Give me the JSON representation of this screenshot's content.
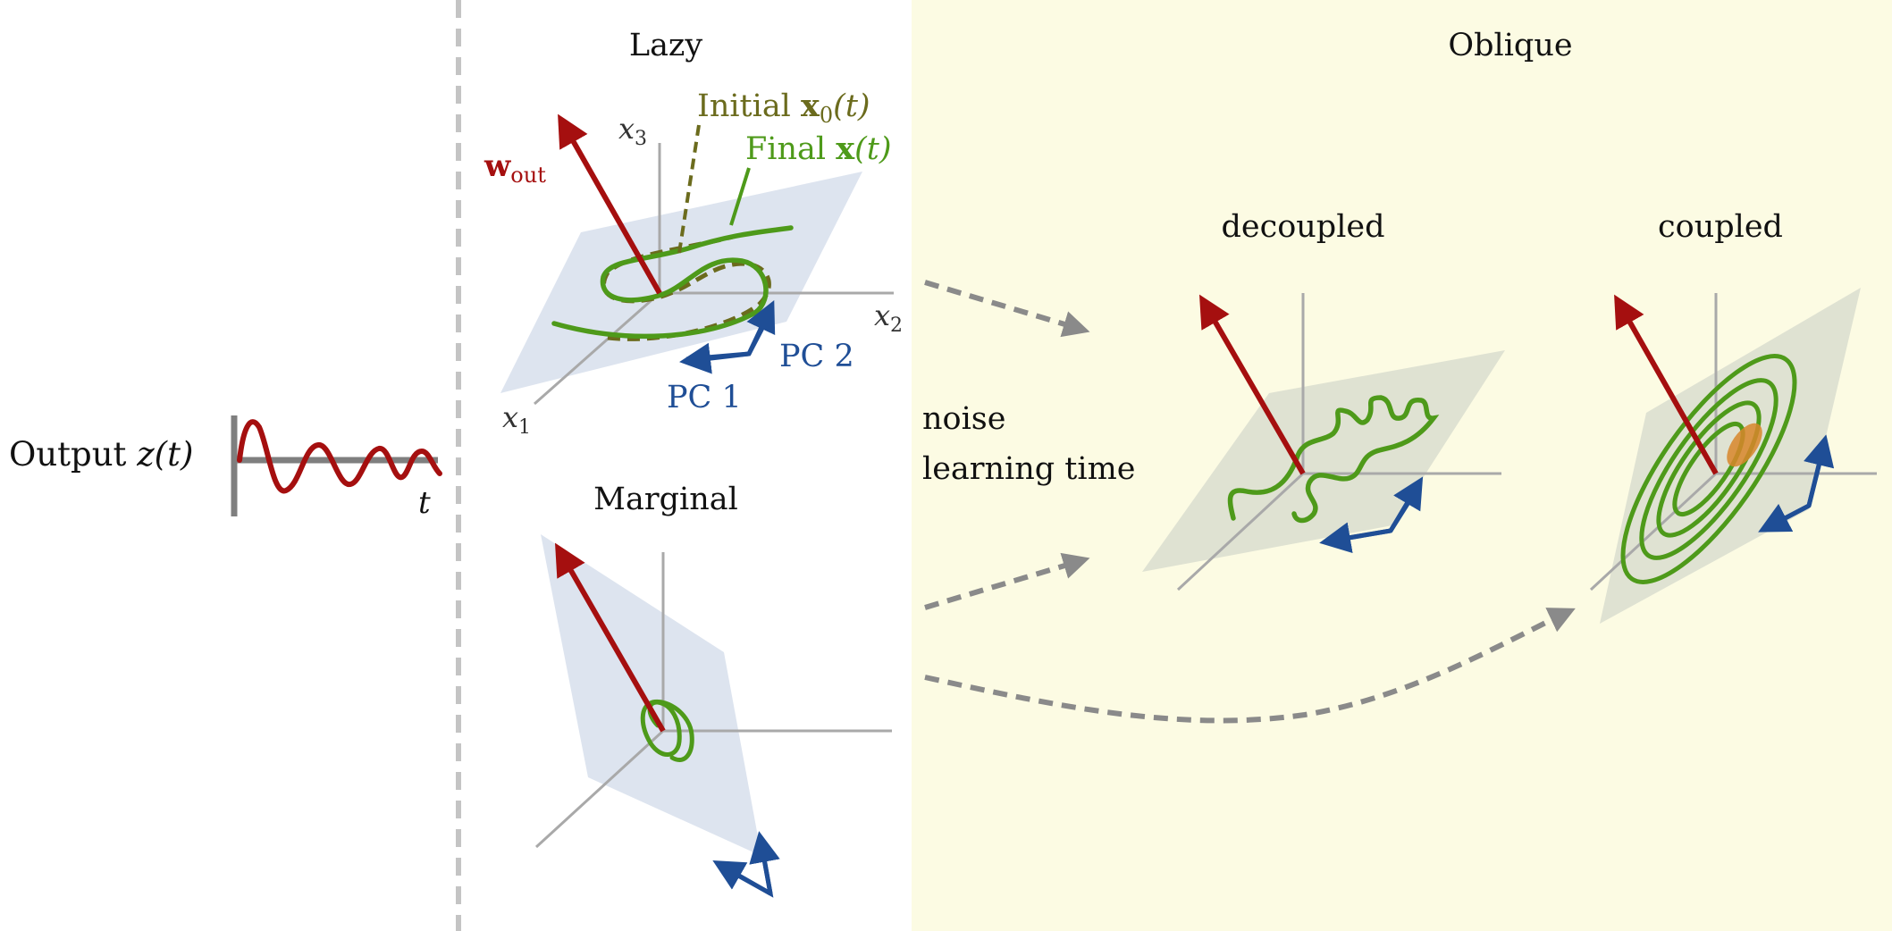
{
  "colors": {
    "output_vector": "#a50f0f",
    "initial_trajectory": "#6b6b1d",
    "final_trajectory": "#4e9a1a",
    "pc_arrows": "#1f4e96",
    "plane_lazy": "#dde4ef",
    "plane_oblique": "#dfe2d2",
    "axes": "#a9a9a9",
    "dashed_flow_arrows": "#8a8a8a",
    "oblique_background": "#fcfbe3",
    "orange_blob": "#d8862c"
  },
  "left": {
    "output_label": "Output",
    "output_var": "z(t)",
    "time_label": "t"
  },
  "lazy": {
    "title": "Lazy",
    "w_out": "w",
    "w_out_sub": "out",
    "x3": "x",
    "x3_sub": "3",
    "x2": "x",
    "x2_sub": "2",
    "x1": "x",
    "x1_sub": "1",
    "initial_label": "Initial ",
    "initial_bold": "x",
    "initial_sub": "0",
    "initial_tail": "(t)",
    "final_label": "Final ",
    "final_bold": "x",
    "final_tail": "(t)",
    "pc1": "PC 1",
    "pc2": "PC 2"
  },
  "marginal": {
    "title": "Marginal"
  },
  "middle": {
    "line1": "noise",
    "line2": "learning time"
  },
  "oblique": {
    "title": "Oblique",
    "decoupled": "decoupled",
    "coupled": "coupled"
  },
  "icons": {
    "arrow_head": "arrow-head-icon"
  }
}
